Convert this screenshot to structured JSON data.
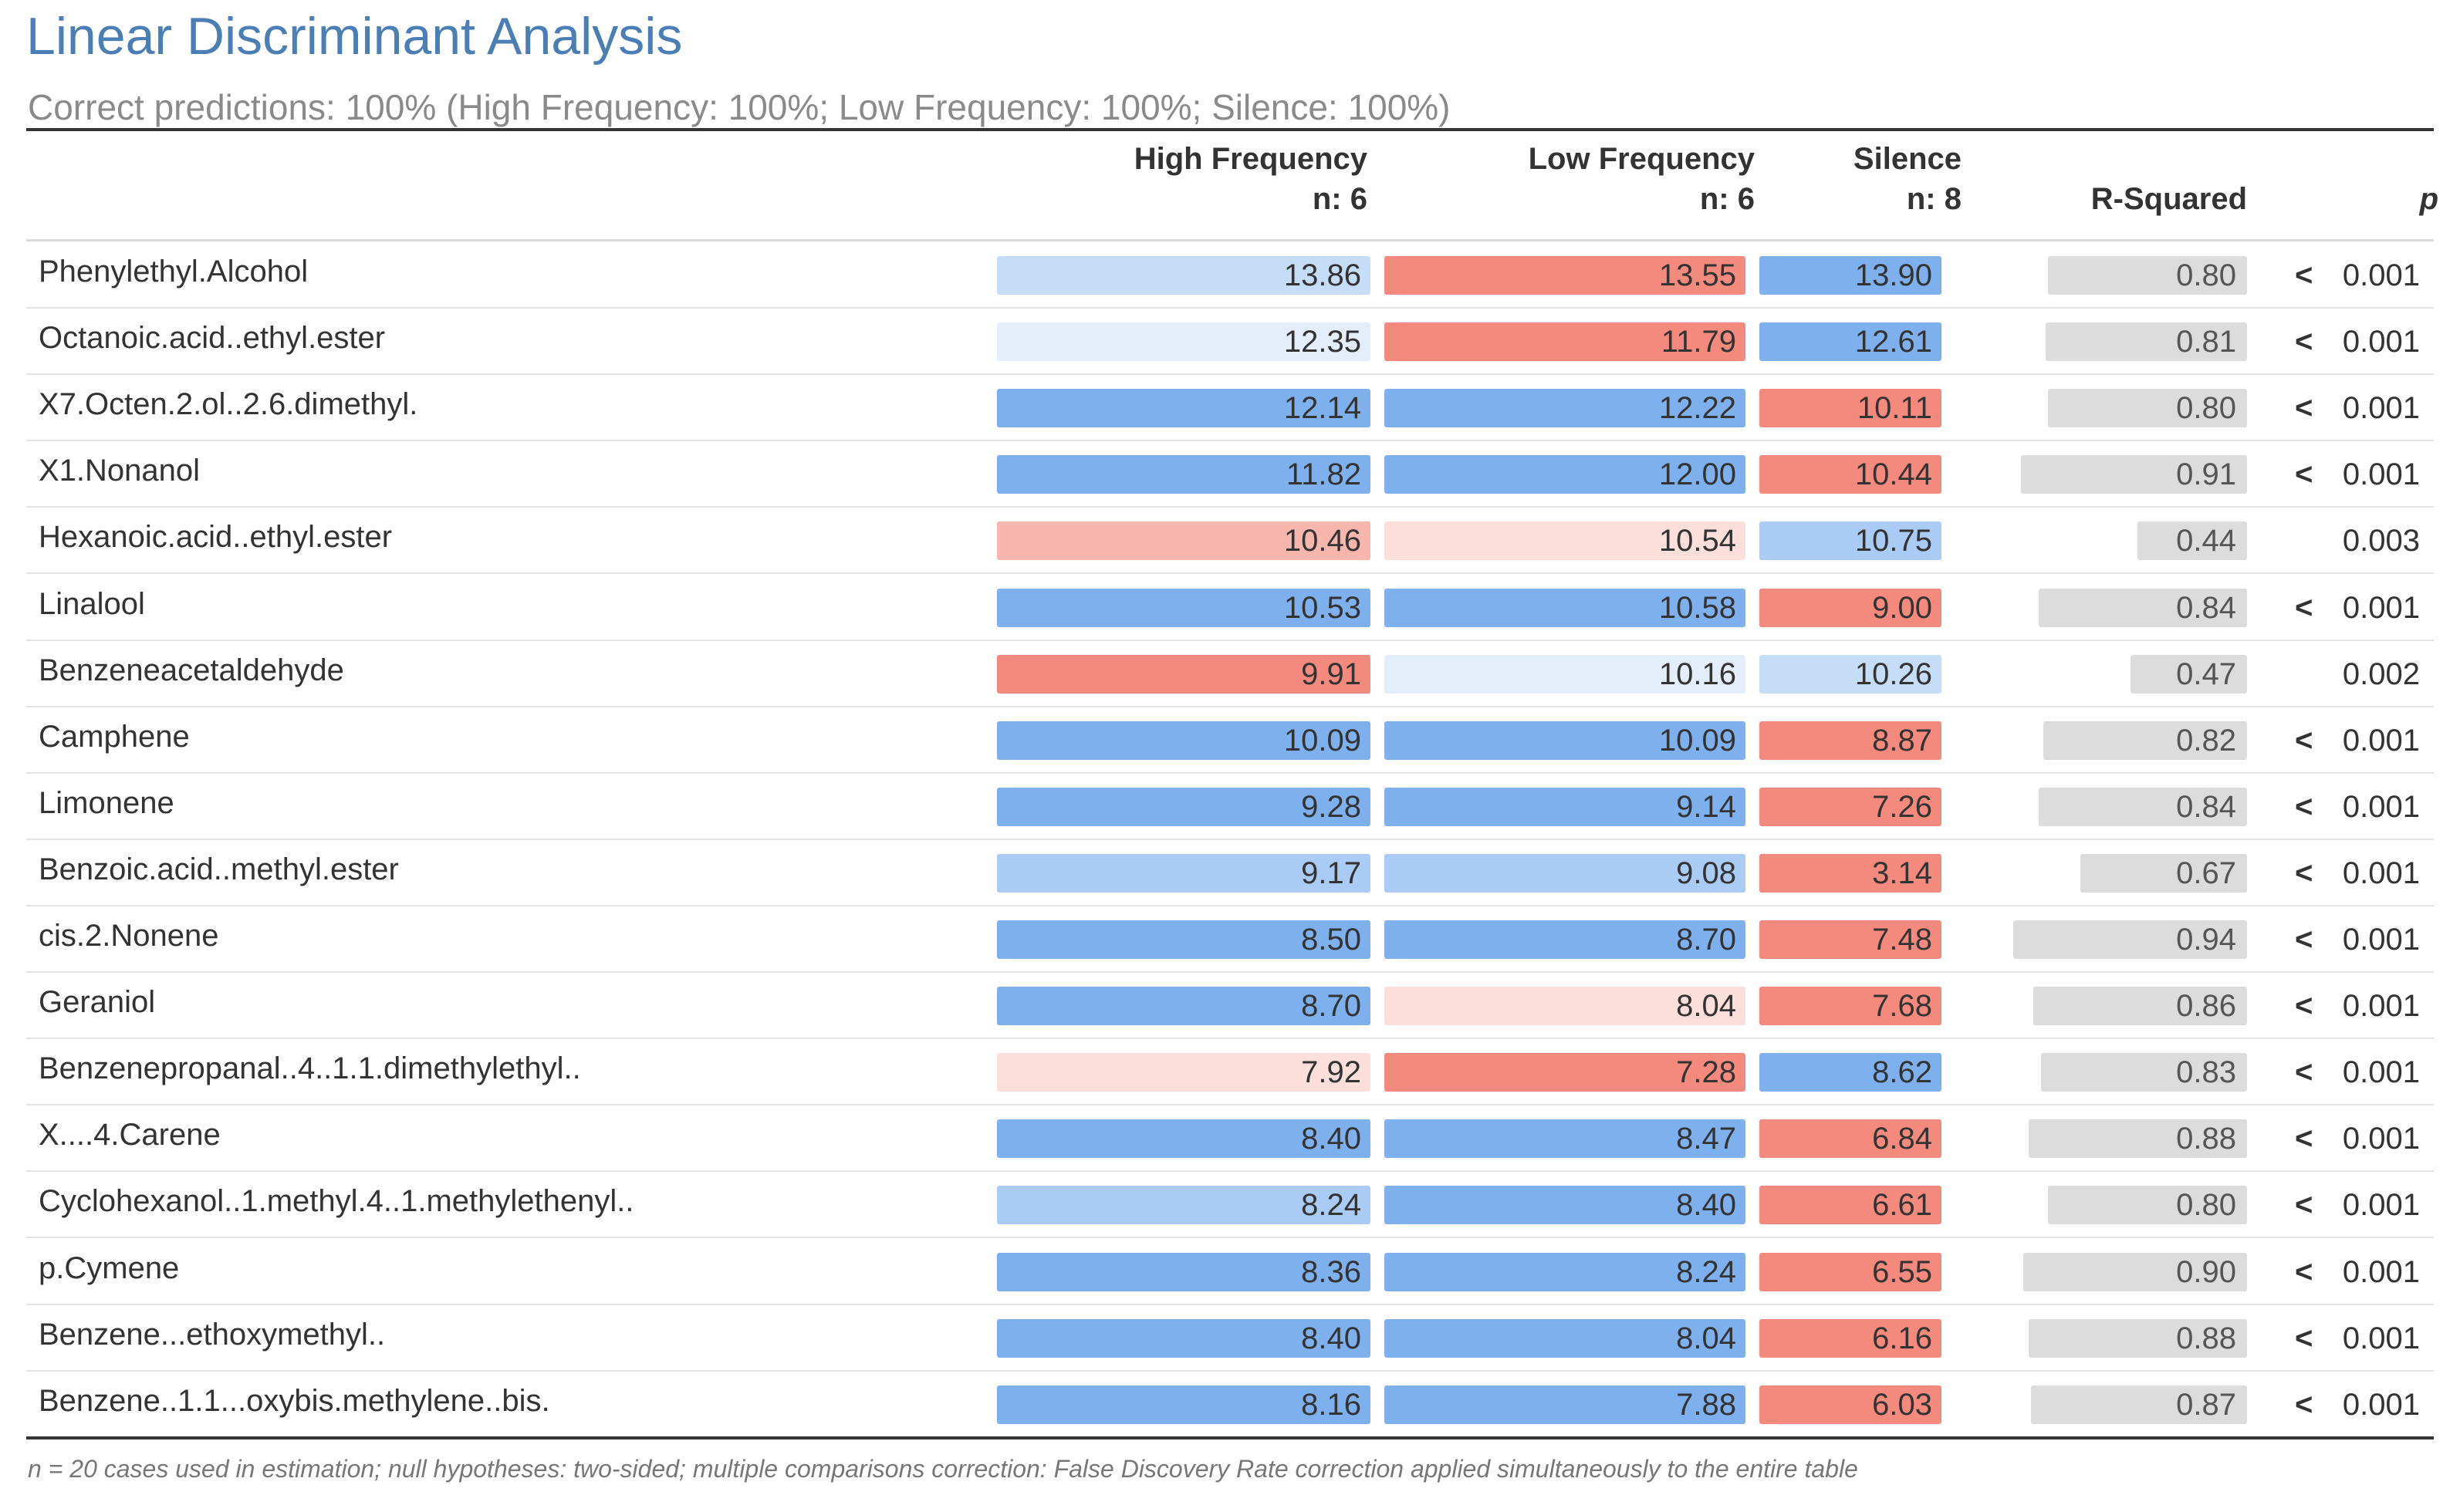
{
  "title": "Linear Discriminant Analysis",
  "subtitle": "Correct predictions: 100% (High Frequency: 100%; Low Frequency: 100%; Silence: 100%)",
  "columns": {
    "high": {
      "name": "High Frequency",
      "n": "n: 6"
    },
    "low": {
      "name": "Low Frequency",
      "n": "n: 6"
    },
    "silence": {
      "name": "Silence",
      "n": "n: 8"
    },
    "rsq": "R-Squared",
    "p": "p"
  },
  "colors": {
    "blue_strong": "#7fb0ee",
    "blue_mid": "#a9cbf4",
    "blue_light": "#c6ddf7",
    "blue_pale": "#e4eefb",
    "red_strong": "#f4897d",
    "red_mid": "#f7b6ad",
    "red_pale": "#fcdfda",
    "neutral": "#ffffff",
    "rsq_bar": "#dcdcdc",
    "title": "#4a7eb5"
  },
  "rows": [
    {
      "label": "Phenylethyl.Alcohol",
      "hf": "13.86",
      "hf_c": "blue_light",
      "lf": "13.55",
      "lf_c": "red_strong",
      "si": "13.90",
      "si_c": "blue_strong",
      "rsq": "0.80",
      "rsq_val": 0.8,
      "lt": "<",
      "p": "0.001"
    },
    {
      "label": "Octanoic.acid..ethyl.ester",
      "hf": "12.35",
      "hf_c": "blue_pale",
      "lf": "11.79",
      "lf_c": "red_strong",
      "si": "12.61",
      "si_c": "blue_strong",
      "rsq": "0.81",
      "rsq_val": 0.81,
      "lt": "<",
      "p": "0.001"
    },
    {
      "label": "X7.Octen.2.ol..2.6.dimethyl.",
      "hf": "12.14",
      "hf_c": "blue_strong",
      "lf": "12.22",
      "lf_c": "blue_strong",
      "si": "10.11",
      "si_c": "red_strong",
      "rsq": "0.80",
      "rsq_val": 0.8,
      "lt": "<",
      "p": "0.001"
    },
    {
      "label": "X1.Nonanol",
      "hf": "11.82",
      "hf_c": "blue_strong",
      "lf": "12.00",
      "lf_c": "blue_strong",
      "si": "10.44",
      "si_c": "red_strong",
      "rsq": "0.91",
      "rsq_val": 0.91,
      "lt": "<",
      "p": "0.001"
    },
    {
      "label": "Hexanoic.acid..ethyl.ester",
      "hf": "10.46",
      "hf_c": "red_mid",
      "lf": "10.54",
      "lf_c": "red_pale",
      "si": "10.75",
      "si_c": "blue_mid",
      "rsq": "0.44",
      "rsq_val": 0.44,
      "lt": "",
      "p": "0.003"
    },
    {
      "label": "Linalool",
      "hf": "10.53",
      "hf_c": "blue_strong",
      "lf": "10.58",
      "lf_c": "blue_strong",
      "si": "9.00",
      "si_c": "red_strong",
      "rsq": "0.84",
      "rsq_val": 0.84,
      "lt": "<",
      "p": "0.001"
    },
    {
      "label": "Benzeneacetaldehyde",
      "hf": "9.91",
      "hf_c": "red_strong",
      "lf": "10.16",
      "lf_c": "blue_pale",
      "si": "10.26",
      "si_c": "blue_light",
      "rsq": "0.47",
      "rsq_val": 0.47,
      "lt": "",
      "p": "0.002"
    },
    {
      "label": "Camphene",
      "hf": "10.09",
      "hf_c": "blue_strong",
      "lf": "10.09",
      "lf_c": "blue_strong",
      "si": "8.87",
      "si_c": "red_strong",
      "rsq": "0.82",
      "rsq_val": 0.82,
      "lt": "<",
      "p": "0.001"
    },
    {
      "label": "Limonene",
      "hf": "9.28",
      "hf_c": "blue_strong",
      "lf": "9.14",
      "lf_c": "blue_strong",
      "si": "7.26",
      "si_c": "red_strong",
      "rsq": "0.84",
      "rsq_val": 0.84,
      "lt": "<",
      "p": "0.001"
    },
    {
      "label": "Benzoic.acid..methyl.ester",
      "hf": "9.17",
      "hf_c": "blue_mid",
      "lf": "9.08",
      "lf_c": "blue_mid",
      "si": "3.14",
      "si_c": "red_strong",
      "rsq": "0.67",
      "rsq_val": 0.67,
      "lt": "<",
      "p": "0.001"
    },
    {
      "label": "cis.2.Nonene",
      "hf": "8.50",
      "hf_c": "blue_strong",
      "lf": "8.70",
      "lf_c": "blue_strong",
      "si": "7.48",
      "si_c": "red_strong",
      "rsq": "0.94",
      "rsq_val": 0.94,
      "lt": "<",
      "p": "0.001"
    },
    {
      "label": "Geraniol",
      "hf": "8.70",
      "hf_c": "blue_strong",
      "lf": "8.04",
      "lf_c": "red_pale",
      "si": "7.68",
      "si_c": "red_strong",
      "rsq": "0.86",
      "rsq_val": 0.86,
      "lt": "<",
      "p": "0.001"
    },
    {
      "label": "Benzenepropanal..4..1.1.dimethylethyl..",
      "hf": "7.92",
      "hf_c": "red_pale",
      "lf": "7.28",
      "lf_c": "red_strong",
      "si": "8.62",
      "si_c": "blue_strong",
      "rsq": "0.83",
      "rsq_val": 0.83,
      "lt": "<",
      "p": "0.001"
    },
    {
      "label": "X....4.Carene",
      "hf": "8.40",
      "hf_c": "blue_strong",
      "lf": "8.47",
      "lf_c": "blue_strong",
      "si": "6.84",
      "si_c": "red_strong",
      "rsq": "0.88",
      "rsq_val": 0.88,
      "lt": "<",
      "p": "0.001"
    },
    {
      "label": "Cyclohexanol..1.methyl.4..1.methylethenyl..",
      "hf": "8.24",
      "hf_c": "blue_mid",
      "lf": "8.40",
      "lf_c": "blue_strong",
      "si": "6.61",
      "si_c": "red_strong",
      "rsq": "0.80",
      "rsq_val": 0.8,
      "lt": "<",
      "p": "0.001"
    },
    {
      "label": "p.Cymene",
      "hf": "8.36",
      "hf_c": "blue_strong",
      "lf": "8.24",
      "lf_c": "blue_strong",
      "si": "6.55",
      "si_c": "red_strong",
      "rsq": "0.90",
      "rsq_val": 0.9,
      "lt": "<",
      "p": "0.001"
    },
    {
      "label": "Benzene...ethoxymethyl..",
      "hf": "8.40",
      "hf_c": "blue_strong",
      "lf": "8.04",
      "lf_c": "blue_strong",
      "si": "6.16",
      "si_c": "red_strong",
      "rsq": "0.88",
      "rsq_val": 0.88,
      "lt": "<",
      "p": "0.001"
    },
    {
      "label": "Benzene..1.1...oxybis.methylene..bis.",
      "hf": "8.16",
      "hf_c": "blue_strong",
      "lf": "7.88",
      "lf_c": "blue_strong",
      "si": "6.03",
      "si_c": "red_strong",
      "rsq": "0.87",
      "rsq_val": 0.87,
      "lt": "<",
      "p": "0.001"
    }
  ],
  "footnote": "n = 20 cases used in estimation; null hypotheses: two-sided; multiple comparisons correction: False Discovery Rate correction applied simultaneously to the entire table"
}
